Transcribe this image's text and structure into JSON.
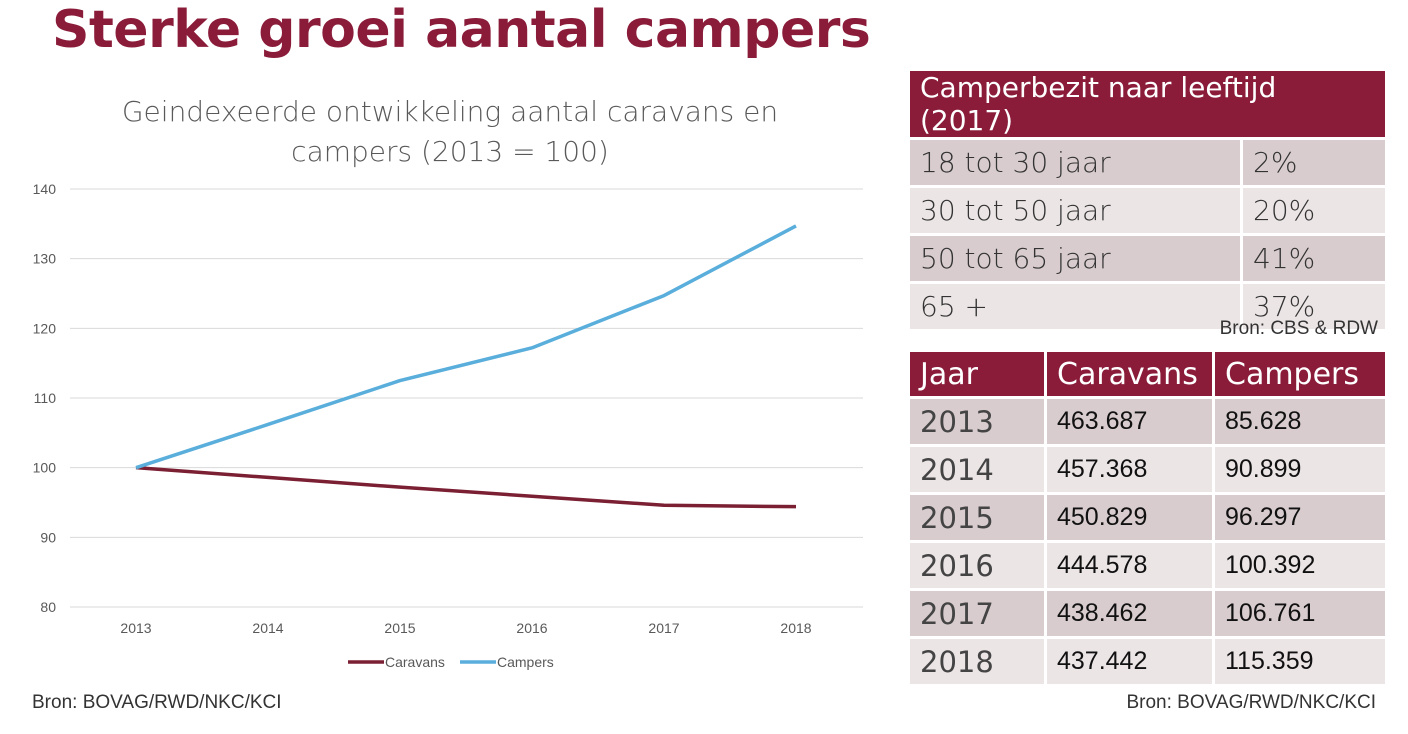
{
  "page": {
    "title": "Sterke groei aantal campers",
    "source_chart": "Bron: BOVAG/RWD/NKC/KCI",
    "source_age_table": "Bron: CBS & RDW",
    "source_year_table": "Bron: BOVAG/RWD/NKC/KCI"
  },
  "chart_data": {
    "type": "line",
    "title": "Geindexeerde ontwikkeling aantal caravans en campers (2013 = 100)",
    "xlabel": "",
    "ylabel": "",
    "x": [
      "2013",
      "2014",
      "2015",
      "2016",
      "2017",
      "2018"
    ],
    "ylim": [
      80,
      140
    ],
    "yticks": [
      80,
      90,
      100,
      110,
      120,
      130,
      140
    ],
    "grid": true,
    "legend": "bottom",
    "series": [
      {
        "name": "Caravans",
        "color": "#7b1f33",
        "values": [
          100,
          98.6,
          97.2,
          95.9,
          94.6,
          94.4
        ]
      },
      {
        "name": "Campers",
        "color": "#5aaedb",
        "values": [
          100,
          106.2,
          112.5,
          117.2,
          124.7,
          134.7
        ]
      }
    ]
  },
  "age_table": {
    "header": "Camperbezit naar leeftijd (2017)",
    "rows": [
      {
        "label": "18 tot 30 jaar",
        "value": "2%"
      },
      {
        "label": "30 tot 50 jaar",
        "value": "20%"
      },
      {
        "label": "50 tot 65 jaar",
        "value": "41%"
      },
      {
        "label": "65 +",
        "value": "37%"
      }
    ]
  },
  "year_table": {
    "headers": [
      "Jaar",
      "Caravans",
      "Campers"
    ],
    "rows": [
      {
        "year": "2013",
        "caravans": "463.687",
        "campers": "85.628"
      },
      {
        "year": "2014",
        "caravans": "457.368",
        "campers": "90.899"
      },
      {
        "year": "2015",
        "caravans": "450.829",
        "campers": "96.297"
      },
      {
        "year": "2016",
        "caravans": "444.578",
        "campers": "100.392"
      },
      {
        "year": "2017",
        "caravans": "438.462",
        "campers": "106.761"
      },
      {
        "year": "2018",
        "caravans": "437.442",
        "campers": "115.359"
      }
    ]
  }
}
